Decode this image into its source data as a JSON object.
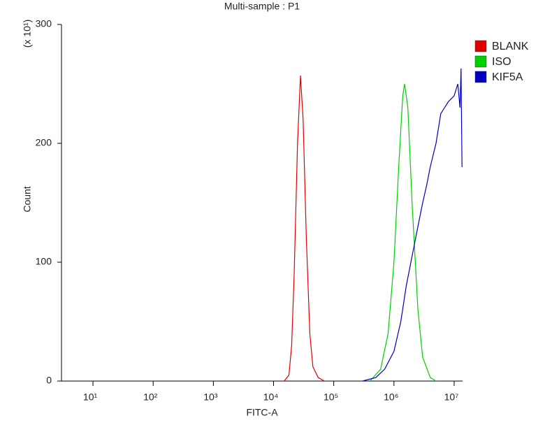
{
  "chart_data": {
    "type": "line",
    "title": "Multi-sample : P1",
    "x_label": "FITC-A",
    "y_label": "Count",
    "y_multiplier": "(x 10¹)",
    "xscale": "log",
    "xlim": [
      3,
      13800000
    ],
    "xticks": [
      {
        "value": 10,
        "label": "10¹"
      },
      {
        "value": 100,
        "label": "10²"
      },
      {
        "value": 1000,
        "label": "10³"
      },
      {
        "value": 10000,
        "label": "10⁴"
      },
      {
        "value": 100000,
        "label": "10⁵"
      },
      {
        "value": 1000000,
        "label": "10⁶"
      },
      {
        "value": 10000000,
        "label": "10⁷"
      }
    ],
    "ylim": [
      0,
      300
    ],
    "yticks": [
      0,
      100,
      200,
      300
    ],
    "legend": "right",
    "series": [
      {
        "name": "BLANK",
        "color": "#e00000",
        "x": [
          15000,
          18000,
          20000,
          22000,
          25000,
          28000,
          31000,
          35000,
          40000,
          45000,
          55000,
          70000
        ],
        "values": [
          0,
          5,
          30,
          90,
          200,
          257,
          220,
          120,
          40,
          12,
          3,
          0
        ]
      },
      {
        "name": "ISO",
        "color": "#00d000",
        "x": [
          400000,
          600000,
          800000,
          1000000,
          1200000,
          1400000,
          1500000,
          1700000,
          2000000,
          2500000,
          3000000,
          4000000,
          5000000
        ],
        "values": [
          0,
          10,
          40,
          100,
          180,
          240,
          250,
          230,
          150,
          60,
          20,
          3,
          0
        ]
      },
      {
        "name": "KIF5A",
        "color": "#0000c0",
        "x": [
          300000,
          500000,
          700000,
          1000000,
          1300000,
          1600000,
          2000000,
          2500000,
          3000000,
          3500000,
          4000000,
          5000000,
          6000000,
          8000000,
          10000000,
          11500000,
          12500000,
          13000000,
          13500000
        ],
        "values": [
          0,
          3,
          10,
          25,
          50,
          80,
          105,
          130,
          150,
          165,
          180,
          200,
          225,
          235,
          240,
          250,
          230,
          263,
          180
        ]
      }
    ]
  }
}
